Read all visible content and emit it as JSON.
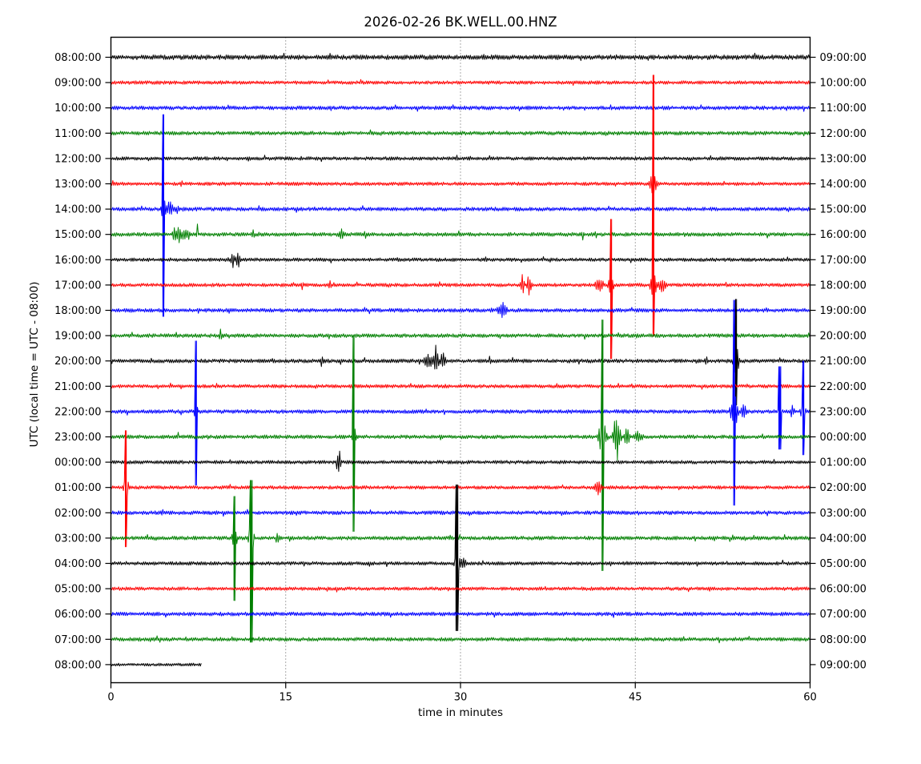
{
  "chart_data": {
    "type": "line",
    "subtype": "seismogram-dayplot",
    "title": "2026-02-26 BK.WELL.00.HNZ",
    "xlabel": "time in minutes",
    "ylabel": "UTC (local time = UTC - 08:00)",
    "xlim": [
      0,
      60
    ],
    "xticks": [
      0,
      15,
      30,
      45,
      60
    ],
    "grid_minutes": [
      15,
      30,
      45
    ],
    "grid_on": true,
    "colors": {
      "cycle": [
        "#000000",
        "#ff0000",
        "#0000ff",
        "#008000"
      ],
      "grid": "#444444",
      "frame": "#000000",
      "background": "#ffffff"
    },
    "minutes_per_line": 60,
    "traces": [
      {
        "left_label": "08:00:00",
        "right_label": "09:00:00",
        "color": "#000000",
        "end_minute": 60,
        "noise": 1.5,
        "events": []
      },
      {
        "left_label": "09:00:00",
        "right_label": "10:00:00",
        "color": "#ff0000",
        "end_minute": 60,
        "noise": 1.1,
        "events": []
      },
      {
        "left_label": "10:00:00",
        "right_label": "11:00:00",
        "color": "#0000ff",
        "end_minute": 60,
        "noise": 1.2,
        "events": []
      },
      {
        "left_label": "11:00:00",
        "right_label": "12:00:00",
        "color": "#008000",
        "end_minute": 60,
        "noise": 1.2,
        "events": []
      },
      {
        "left_label": "12:00:00",
        "right_label": "13:00:00",
        "color": "#000000",
        "end_minute": 60,
        "noise": 1.1,
        "events": []
      },
      {
        "left_label": "13:00:00",
        "right_label": "14:00:00",
        "color": "#ff0000",
        "end_minute": 60,
        "noise": 1.1,
        "events": [
          {
            "m": 46.55,
            "w": 0.45,
            "a": 9
          }
        ]
      },
      {
        "left_label": "14:00:00",
        "right_label": "15:00:00",
        "color": "#0000ff",
        "end_minute": 60,
        "noise": 1.2,
        "events": [
          {
            "m": 4.5,
            "w": 0.22,
            "a": 12,
            "up": 118,
            "down": 134
          },
          {
            "m": 5.0,
            "w": 0.55,
            "a": 6
          },
          {
            "m": 5.7,
            "w": 0.3,
            "a": 3
          }
        ]
      },
      {
        "left_label": "15:00:00",
        "right_label": "16:00:00",
        "color": "#008000",
        "end_minute": 60,
        "noise": 1.2,
        "events": [
          {
            "m": 5.45,
            "w": 0.25,
            "a": 7
          },
          {
            "m": 5.85,
            "w": 0.3,
            "a": 8
          },
          {
            "m": 6.3,
            "w": 0.25,
            "a": 6
          },
          {
            "m": 6.65,
            "w": 0.2,
            "a": 5
          },
          {
            "m": 7.4,
            "w": 0.07,
            "a": 12
          },
          {
            "m": 12.2,
            "w": 0.15,
            "a": 4
          },
          {
            "m": 19.8,
            "w": 0.3,
            "a": 4
          },
          {
            "m": 21.8,
            "w": 0.15,
            "a": 5
          },
          {
            "m": 40.5,
            "w": 0.1,
            "a": 6
          },
          {
            "m": 41.6,
            "w": 0.1,
            "a": 4
          }
        ]
      },
      {
        "left_label": "16:00:00",
        "right_label": "17:00:00",
        "color": "#000000",
        "end_minute": 60,
        "noise": 1.1,
        "events": [
          {
            "m": 10.45,
            "w": 0.2,
            "a": 7
          },
          {
            "m": 10.9,
            "w": 0.25,
            "a": 8
          }
        ]
      },
      {
        "left_label": "17:00:00",
        "right_label": "18:00:00",
        "color": "#ff0000",
        "end_minute": 60,
        "noise": 1.1,
        "events": [
          {
            "m": 16.4,
            "w": 0.15,
            "a": 4
          },
          {
            "m": 18.8,
            "w": 0.15,
            "a": 4
          },
          {
            "m": 35.3,
            "w": 0.2,
            "a": 10
          },
          {
            "m": 35.9,
            "w": 0.25,
            "a": 12
          },
          {
            "m": 41.9,
            "w": 0.5,
            "a": 6
          },
          {
            "m": 42.9,
            "w": 0.28,
            "a": 14,
            "up": 82,
            "down": 92
          },
          {
            "m": 46.55,
            "w": 0.35,
            "a": 16,
            "up": 262,
            "down": 64
          },
          {
            "m": 47.3,
            "w": 0.5,
            "a": 6
          }
        ]
      },
      {
        "left_label": "18:00:00",
        "right_label": "19:00:00",
        "color": "#0000ff",
        "end_minute": 60,
        "noise": 1.2,
        "events": [
          {
            "m": 33.6,
            "w": 0.55,
            "a": 7
          }
        ]
      },
      {
        "left_label": "19:00:00",
        "right_label": "20:00:00",
        "color": "#008000",
        "end_minute": 60,
        "noise": 1.2,
        "events": [
          {
            "m": 9.4,
            "w": 0.12,
            "a": 6
          }
        ]
      },
      {
        "left_label": "20:00:00",
        "right_label": "21:00:00",
        "color": "#000000",
        "end_minute": 60,
        "noise": 1.2,
        "events": [
          {
            "m": 18.1,
            "w": 0.15,
            "a": 6
          },
          {
            "m": 27.2,
            "w": 0.5,
            "a": 8
          },
          {
            "m": 27.9,
            "w": 0.3,
            "a": 14
          },
          {
            "m": 28.5,
            "w": 0.3,
            "a": 8
          },
          {
            "m": 32.5,
            "w": 0.1,
            "a": 3
          },
          {
            "m": 51.1,
            "w": 0.15,
            "a": 4
          },
          {
            "m": 53.65,
            "w": 0.33,
            "a": 17,
            "up": 77,
            "down": 55
          }
        ]
      },
      {
        "left_label": "21:00:00",
        "right_label": "22:00:00",
        "color": "#ff0000",
        "end_minute": 60,
        "noise": 1.1,
        "events": []
      },
      {
        "left_label": "22:00:00",
        "right_label": "23:00:00",
        "color": "#0000ff",
        "end_minute": 60,
        "noise": 1.2,
        "events": [
          {
            "m": 7.3,
            "w": 0.18,
            "a": 12,
            "up": 88,
            "down": 92
          },
          {
            "m": 53.5,
            "w": 0.45,
            "a": 18,
            "up": 139,
            "down": 117
          },
          {
            "m": 54.3,
            "w": 0.3,
            "a": 8
          },
          {
            "m": 57.4,
            "w": 0.09,
            "a": 8,
            "up": 56,
            "down": 47
          },
          {
            "m": 58.5,
            "w": 0.2,
            "a": 5
          },
          {
            "m": 59.4,
            "w": 0.28,
            "a": 10,
            "up": 63,
            "down": 54
          }
        ]
      },
      {
        "left_label": "23:00:00",
        "right_label": "00:00:00",
        "color": "#008000",
        "end_minute": 60,
        "noise": 1.2,
        "events": [
          {
            "m": 5.8,
            "w": 0.06,
            "a": 6
          },
          {
            "m": 20.85,
            "w": 0.22,
            "a": 14,
            "up": 125,
            "down": 118
          },
          {
            "m": 42.2,
            "w": 0.5,
            "a": 16,
            "up": 146,
            "down": 167
          },
          {
            "m": 43.4,
            "w": 0.45,
            "a": 24
          },
          {
            "m": 44.3,
            "w": 0.3,
            "a": 10
          },
          {
            "m": 45.3,
            "w": 0.5,
            "a": 5
          }
        ]
      },
      {
        "left_label": "00:00:00",
        "right_label": "01:00:00",
        "color": "#000000",
        "end_minute": 60,
        "noise": 1.1,
        "events": [
          {
            "m": 19.55,
            "w": 0.25,
            "a": 15
          }
        ]
      },
      {
        "left_label": "01:00:00",
        "right_label": "02:00:00",
        "color": "#ff0000",
        "end_minute": 60,
        "noise": 1.1,
        "events": [
          {
            "m": 1.3,
            "w": 0.3,
            "a": 12,
            "up": 71,
            "down": 74
          },
          {
            "m": 41.8,
            "w": 0.4,
            "a": 8
          }
        ]
      },
      {
        "left_label": "02:00:00",
        "right_label": "03:00:00",
        "color": "#0000ff",
        "end_minute": 60,
        "noise": 1.2,
        "events": []
      },
      {
        "left_label": "03:00:00",
        "right_label": "04:00:00",
        "color": "#008000",
        "end_minute": 60,
        "noise": 1.2,
        "events": [
          {
            "m": 10.6,
            "w": 0.28,
            "a": 13,
            "up": 52,
            "down": 78
          },
          {
            "m": 12.05,
            "w": 0.33,
            "a": 15,
            "up": 72,
            "down": 130
          },
          {
            "m": 14.3,
            "w": 0.2,
            "a": 5
          }
        ]
      },
      {
        "left_label": "04:00:00",
        "right_label": "05:00:00",
        "color": "#000000",
        "end_minute": 60,
        "noise": 1.1,
        "events": [
          {
            "m": 29.7,
            "w": 0.28,
            "a": 11,
            "up": 98,
            "down": 84
          },
          {
            "m": 30.2,
            "w": 0.4,
            "a": 6
          }
        ]
      },
      {
        "left_label": "05:00:00",
        "right_label": "06:00:00",
        "color": "#ff0000",
        "end_minute": 60,
        "noise": 1.1,
        "events": []
      },
      {
        "left_label": "06:00:00",
        "right_label": "07:00:00",
        "color": "#0000ff",
        "end_minute": 60,
        "noise": 1.2,
        "events": []
      },
      {
        "left_label": "07:00:00",
        "right_label": "08:00:00",
        "color": "#008000",
        "end_minute": 60,
        "noise": 1.2,
        "events": []
      },
      {
        "left_label": "08:00:00",
        "right_label": "09:00:00",
        "color": "#000000",
        "end_minute": 7.8,
        "noise": 0.9,
        "events": []
      }
    ]
  }
}
